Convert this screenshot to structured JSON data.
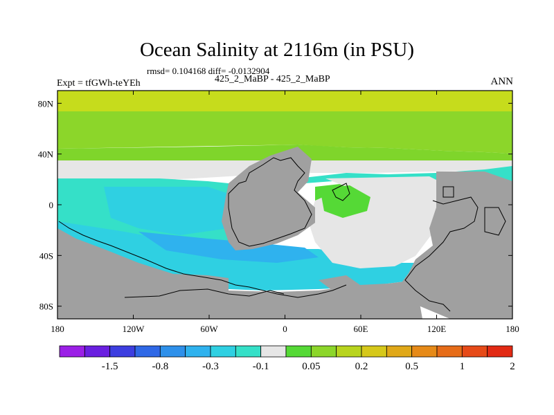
{
  "chart_data": {
    "type": "heatmap",
    "title": "Ocean Salinity at 2116m (in PSU)",
    "stats_text": "rmsd= 0.104168 diff= -0.0132904",
    "subtitle": "425_2_MaBP - 425_2_MaBP",
    "left_label": "Expt = tfGWh-teYEh",
    "right_label": "ANN",
    "x_axis": {
      "range": [
        -180,
        180
      ],
      "ticks": [
        -180,
        -120,
        -60,
        0,
        60,
        120,
        180
      ],
      "tick_labels": [
        "180",
        "120W",
        "60W",
        "0",
        "60E",
        "120E",
        "180"
      ]
    },
    "y_axis": {
      "range": [
        -90,
        90
      ],
      "ticks": [
        80,
        40,
        0,
        -40,
        -80
      ],
      "tick_labels": [
        "80N",
        "40N",
        "0",
        "40S",
        "80S"
      ]
    },
    "colorbar": {
      "colors": [
        "#9b1fe6",
        "#6a1fe0",
        "#3d3ee0",
        "#2f68e6",
        "#2e90ea",
        "#2fb2ee",
        "#2fd0e2",
        "#35e0c8",
        "#e6e6e6",
        "#55d936",
        "#8cd62a",
        "#b8d41e",
        "#d6c81a",
        "#e0a818",
        "#e68a18",
        "#e66c18",
        "#e64a18",
        "#e22a14"
      ],
      "labels": [
        "-1.5",
        "-0.8",
        "-0.3",
        "-0.1",
        "0.05",
        "0.2",
        "0.5",
        "1",
        "2"
      ]
    },
    "land_color": "#a0a0a0",
    "field_colors": {
      "high": "#c6dc1c",
      "mid_high": "#8cd62a",
      "positive": "#55d936",
      "neutral": "#e6e6e6",
      "negative": "#35e0c8",
      "more_negative": "#2fd0e2",
      "strong_negative": "#2fb2ee"
    }
  }
}
